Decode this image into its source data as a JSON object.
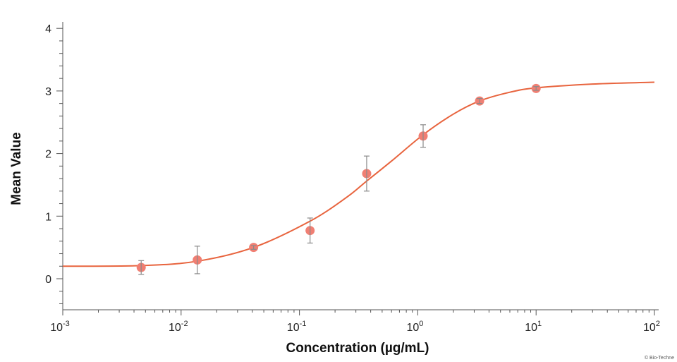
{
  "chart_data": {
    "type": "scatter",
    "xlabel": "Concentration (µg/mL)",
    "ylabel": "Mean Value",
    "x_scale": "log",
    "xlim": [
      0.001,
      100
    ],
    "ylim": [
      -0.5,
      4.1
    ],
    "x_ticks": [
      {
        "value": 0.001,
        "base": "10",
        "exp": "-3"
      },
      {
        "value": 0.01,
        "base": "10",
        "exp": "-2"
      },
      {
        "value": 0.1,
        "base": "10",
        "exp": "-1"
      },
      {
        "value": 1,
        "base": "10",
        "exp": "0"
      },
      {
        "value": 10,
        "base": "10",
        "exp": "1"
      },
      {
        "value": 100,
        "base": "10",
        "exp": "2"
      }
    ],
    "y_ticks": [
      {
        "value": 0,
        "label": "0"
      },
      {
        "value": 1,
        "label": "1"
      },
      {
        "value": 2,
        "label": "2"
      },
      {
        "value": 3,
        "label": "3"
      },
      {
        "value": 4,
        "label": "4"
      }
    ],
    "points": [
      {
        "x": 0.0046,
        "y": 0.18,
        "err": 0.11
      },
      {
        "x": 0.0137,
        "y": 0.3,
        "err": 0.22
      },
      {
        "x": 0.041,
        "y": 0.5,
        "err": 0.03
      },
      {
        "x": 0.123,
        "y": 0.77,
        "err": 0.2
      },
      {
        "x": 0.37,
        "y": 1.68,
        "err": 0.28
      },
      {
        "x": 1.11,
        "y": 2.28,
        "err": 0.18
      },
      {
        "x": 3.33,
        "y": 2.84,
        "err": 0.04
      },
      {
        "x": 10,
        "y": 3.04,
        "err": 0.03
      }
    ],
    "fit_curve": [
      {
        "x": 0.001,
        "y": 0.2
      },
      {
        "x": 0.0046,
        "y": 0.21
      },
      {
        "x": 0.0137,
        "y": 0.28
      },
      {
        "x": 0.041,
        "y": 0.5
      },
      {
        "x": 0.123,
        "y": 0.92
      },
      {
        "x": 0.25,
        "y": 1.3
      },
      {
        "x": 0.37,
        "y": 1.56
      },
      {
        "x": 0.6,
        "y": 1.88
      },
      {
        "x": 1.11,
        "y": 2.3
      },
      {
        "x": 2.0,
        "y": 2.63
      },
      {
        "x": 3.33,
        "y": 2.84
      },
      {
        "x": 6.0,
        "y": 2.98
      },
      {
        "x": 10,
        "y": 3.05
      },
      {
        "x": 30,
        "y": 3.11
      },
      {
        "x": 100,
        "y": 3.14
      }
    ],
    "grid": false,
    "colors": {
      "marker": "#f07f73",
      "curve": "#e8643e",
      "error_bar": "#8a8a8a",
      "axis": "#555555"
    }
  },
  "copyright": "© Bio-Techne"
}
